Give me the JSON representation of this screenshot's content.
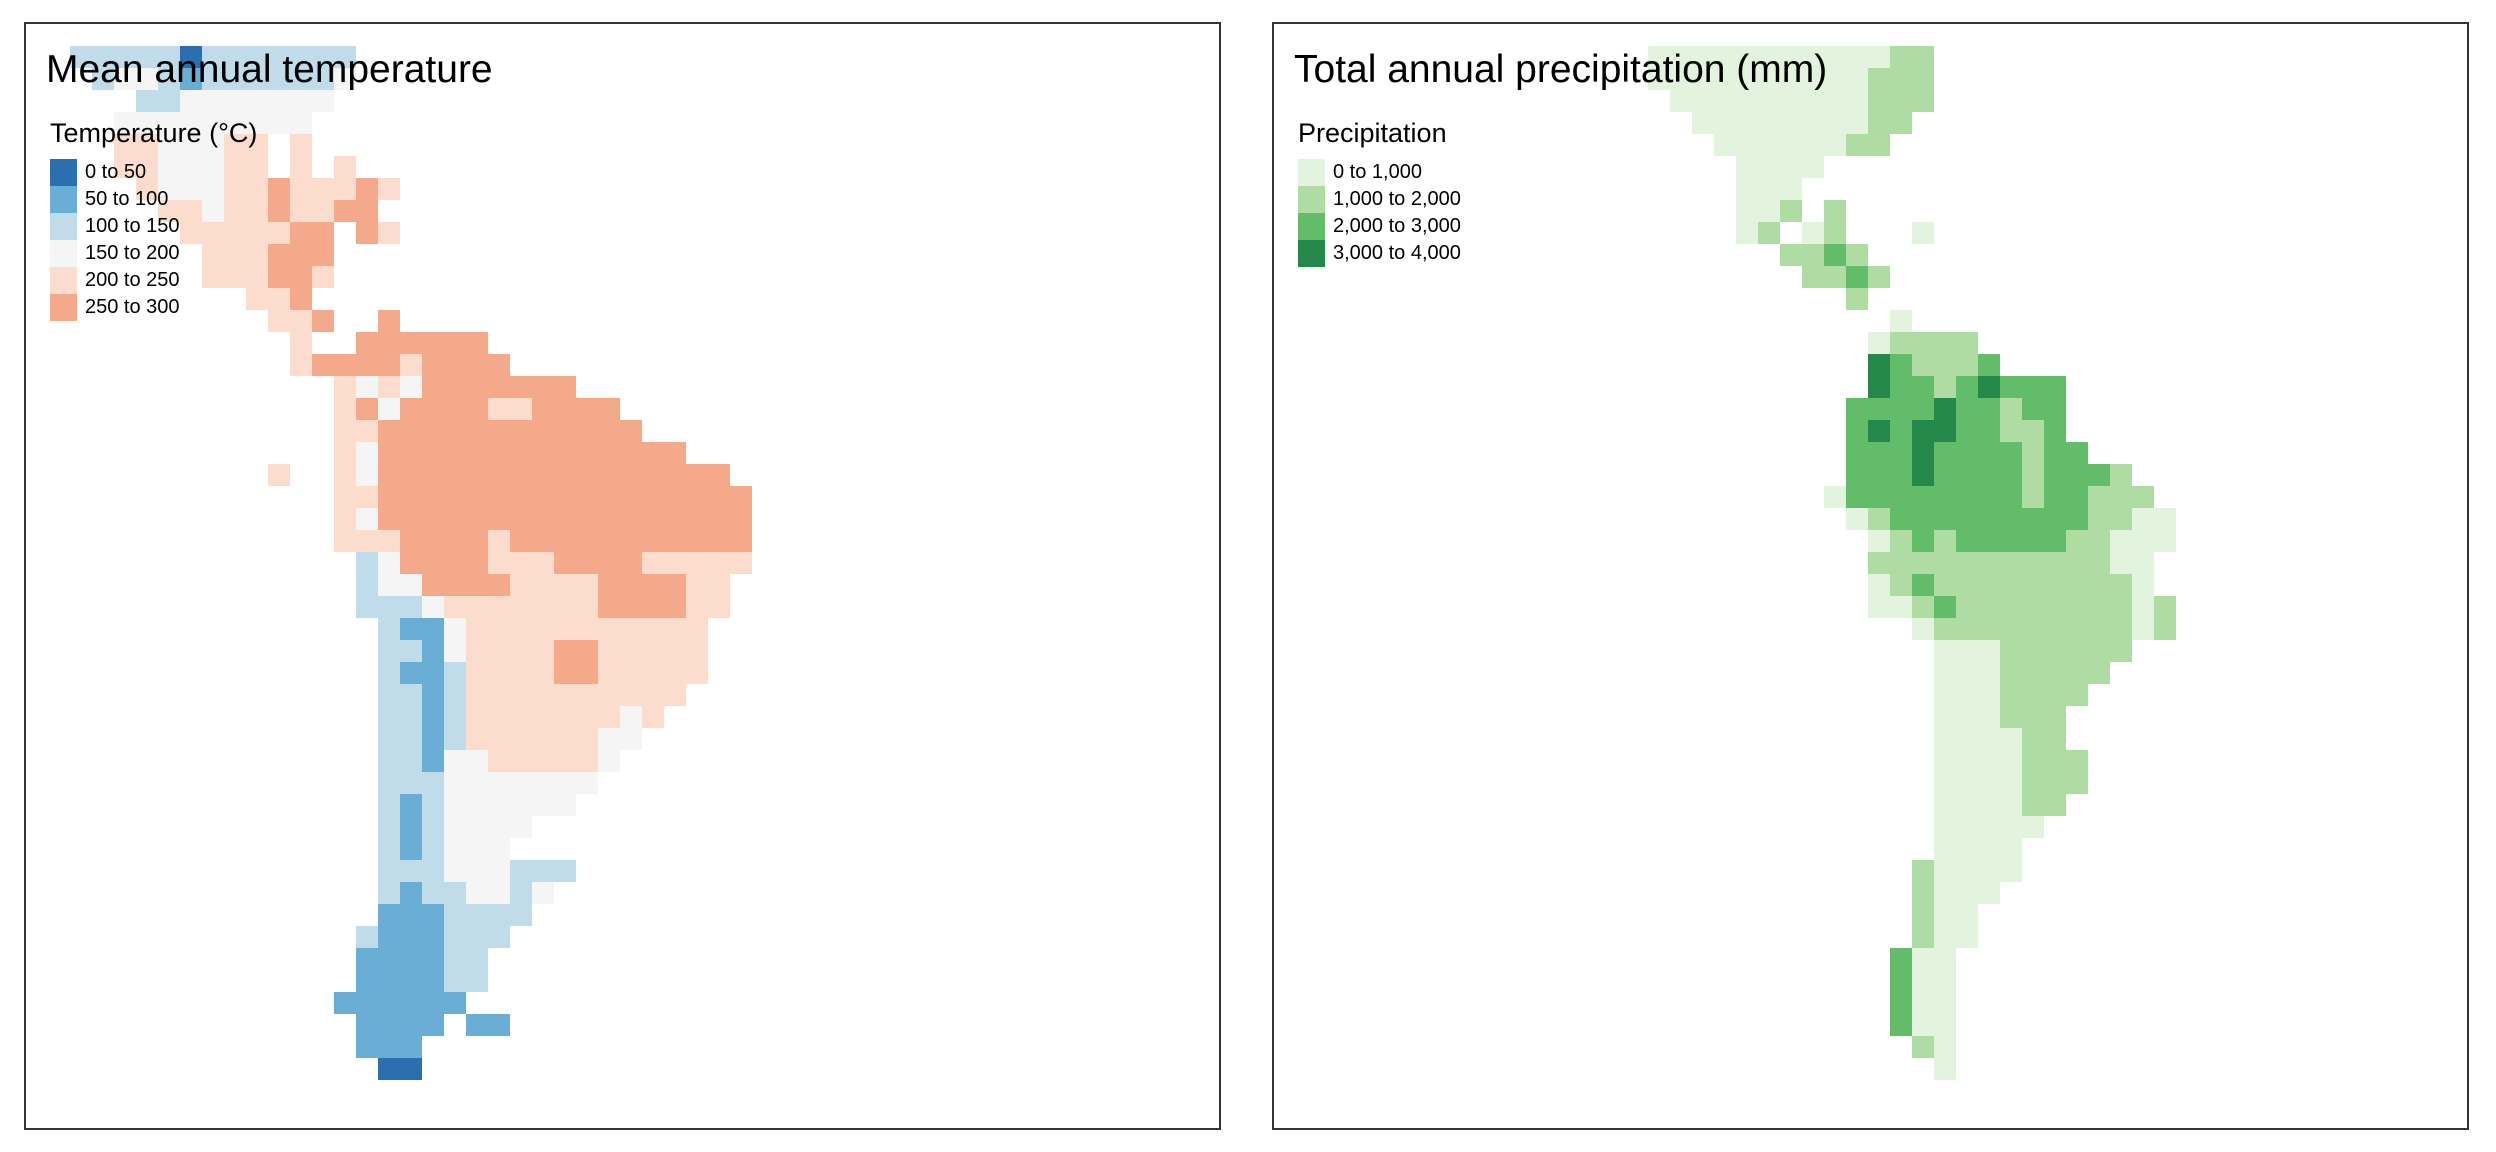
{
  "maps": [
    {
      "title": "Mean annual temperature",
      "legend": {
        "title": "Temperature (°C)",
        "classes": [
          {
            "label": "0 to 50",
            "color": "#2c6fb0"
          },
          {
            "label": "50 to 100",
            "color": "#6aaed6"
          },
          {
            "label": "100 to 150",
            "color": "#c0dbea"
          },
          {
            "label": "150 to 200",
            "color": "#f5f5f5"
          },
          {
            "label": "200 to 250",
            "color": "#fbdccd"
          },
          {
            "label": "250 to 300",
            "color": "#f4a98a"
          }
        ]
      }
    },
    {
      "title": "Total annual precipitation (mm)",
      "legend": {
        "title": "Precipitation",
        "classes": [
          {
            "label": "0 to 1,000",
            "color": "#e2f3de"
          },
          {
            "label": "1,000 to 2,000",
            "color": "#aedca3"
          },
          {
            "label": "2,000 to 3,000",
            "color": "#63bc6a"
          },
          {
            "label": "3,000 to 4,000",
            "color": "#23884a"
          }
        ]
      }
    }
  ]
}
